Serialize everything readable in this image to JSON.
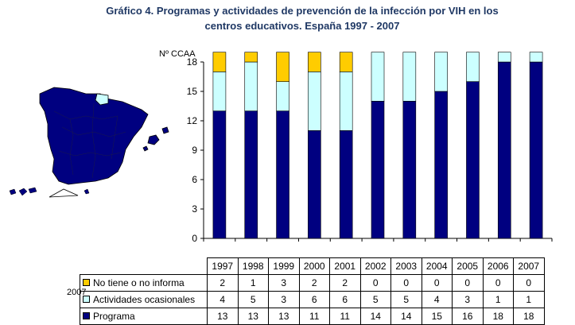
{
  "title_line1": "Gráfico 4. Programas y actividades de prevención de la infección por VIH en los",
  "title_line2": "centros educativos. España 1997 - 2007",
  "map_year": "2007",
  "colors": {
    "programa": "#000080",
    "ocasionales": "#ccffff",
    "no_informa": "#ffcc00"
  },
  "chart_data": {
    "type": "bar",
    "stacked": true,
    "ylabel": "Nº CCAA",
    "ylim": [
      0,
      18
    ],
    "yticks": [
      0,
      3,
      6,
      9,
      12,
      15,
      18
    ],
    "categories": [
      "1997",
      "1998",
      "1999",
      "2000",
      "2001",
      "2002",
      "2003",
      "2004",
      "2005",
      "2006",
      "2007"
    ],
    "series": [
      {
        "name": "Programa",
        "color": "#000080",
        "values": [
          13,
          13,
          13,
          11,
          11,
          14,
          14,
          15,
          16,
          18,
          18
        ]
      },
      {
        "name": "Actividades ocasionales",
        "color": "#ccffff",
        "values": [
          4,
          5,
          3,
          6,
          6,
          5,
          5,
          4,
          3,
          1,
          1
        ]
      },
      {
        "name": "No tiene o no informa",
        "color": "#ffcc00",
        "values": [
          2,
          1,
          3,
          2,
          2,
          0,
          0,
          0,
          0,
          0,
          0
        ]
      }
    ],
    "grid": false,
    "legend": "data-table-below"
  }
}
